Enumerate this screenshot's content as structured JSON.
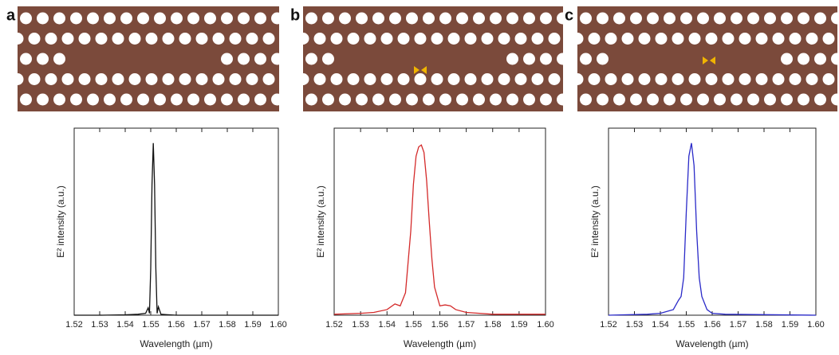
{
  "chart_data": [
    {
      "type": "line",
      "panel_label": "a",
      "x_label": "Wavelength (µm)",
      "y_label": "E² intensity (a.u.)",
      "x": [
        1.52,
        1.53,
        1.54,
        1.545,
        1.548,
        1.549,
        1.5495,
        1.55,
        1.5505,
        1.551,
        1.5515,
        1.552,
        1.5525,
        1.553,
        1.554,
        1.556,
        1.56,
        1.58,
        1.6
      ],
      "series": [
        {
          "color": "#111111",
          "values": [
            0,
            0,
            0.002,
            0.005,
            0.01,
            0.04,
            0.01,
            0.25,
            0.7,
            0.92,
            0.7,
            0.25,
            0.01,
            0.045,
            0.005,
            0.003,
            0,
            0,
            0
          ]
        }
      ],
      "xlim": [
        1.52,
        1.6
      ],
      "ylim": [
        0,
        1
      ],
      "xticks": [
        1.52,
        1.53,
        1.54,
        1.55,
        1.56,
        1.57,
        1.58,
        1.59,
        {
          "value": 1.6,
          "label": "1.60"
        }
      ]
    },
    {
      "type": "line",
      "panel_label": "b",
      "x_label": "Wavelength (µm)",
      "y_label": "E² intensity (a.u.)",
      "x": [
        1.52,
        1.53,
        1.535,
        1.54,
        1.543,
        1.545,
        1.547,
        1.549,
        1.55,
        1.551,
        1.552,
        1.553,
        1.554,
        1.555,
        1.556,
        1.557,
        1.558,
        1.56,
        1.562,
        1.564,
        1.566,
        1.57,
        1.575,
        1.58,
        1.6
      ],
      "series": [
        {
          "color": "#d42a2a",
          "values": [
            0.005,
            0.01,
            0.015,
            0.03,
            0.06,
            0.05,
            0.12,
            0.45,
            0.7,
            0.85,
            0.9,
            0.91,
            0.87,
            0.72,
            0.5,
            0.3,
            0.15,
            0.05,
            0.055,
            0.05,
            0.03,
            0.015,
            0.01,
            0.005,
            0.005
          ]
        }
      ],
      "xlim": [
        1.52,
        1.6
      ],
      "ylim": [
        0,
        1
      ],
      "xticks": [
        1.52,
        1.53,
        1.54,
        1.55,
        1.56,
        1.57,
        1.58,
        1.59,
        {
          "value": 1.6,
          "label": "1.60"
        }
      ]
    },
    {
      "type": "line",
      "panel_label": "c",
      "x_label": "Wavelength (µm)",
      "y_label": "E² intensity (a.u.)",
      "x": [
        1.52,
        1.535,
        1.54,
        1.545,
        1.547,
        1.548,
        1.549,
        1.55,
        1.551,
        1.552,
        1.553,
        1.554,
        1.555,
        1.556,
        1.558,
        1.56,
        1.565,
        1.6
      ],
      "series": [
        {
          "color": "#2a2ac8",
          "values": [
            0,
            0.005,
            0.01,
            0.03,
            0.08,
            0.1,
            0.2,
            0.55,
            0.85,
            0.92,
            0.8,
            0.45,
            0.2,
            0.1,
            0.03,
            0.01,
            0.005,
            0
          ]
        }
      ],
      "xlim": [
        1.52,
        1.6
      ],
      "ylim": [
        0,
        1
      ],
      "xticks": [
        1.52,
        1.53,
        1.54,
        1.55,
        1.56,
        1.57,
        1.58,
        1.59,
        {
          "value": 1.6,
          "label": "1.60"
        }
      ]
    }
  ]
}
